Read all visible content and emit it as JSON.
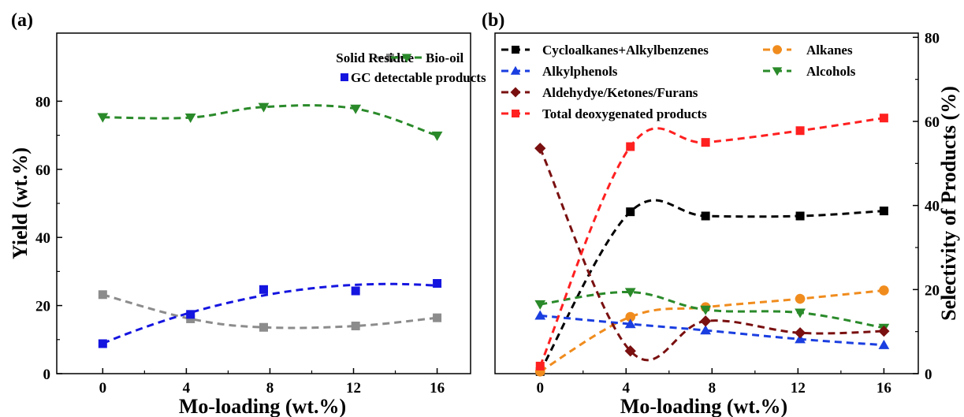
{
  "chart_data": [
    {
      "panel": "(a)",
      "type": "line",
      "xlabel": "Mo-loading (wt.%)",
      "ylabel": "Yield (wt.%)",
      "xlim": [
        -2.2,
        17.6
      ],
      "ylim": [
        0,
        100
      ],
      "xticks": [
        0,
        4,
        8,
        12,
        16
      ],
      "yticks": [
        0,
        20,
        40,
        60,
        80
      ],
      "legend_position": "top-right",
      "series": [
        {
          "name": "Solid Residue",
          "color": "#8c8c8c",
          "marker": "square",
          "x": [
            0,
            4.2,
            7.7,
            12.1,
            16
          ],
          "y": [
            23.2,
            16.1,
            13.6,
            14,
            16.4
          ]
        },
        {
          "name": "Bio-oil",
          "color": "#2a8a2a",
          "marker": "triangle-down",
          "x": [
            0,
            4.2,
            7.7,
            12.1,
            16
          ],
          "y": [
            75.3,
            75.2,
            78.3,
            77.8,
            69.9
          ]
        },
        {
          "name": "GC detectable products",
          "color": "#1515e0",
          "marker": "square",
          "x": [
            0,
            4.2,
            7.7,
            12.1,
            16
          ],
          "y": [
            8.8,
            17.4,
            24.7,
            24.3,
            26.5
          ],
          "trend": true
        }
      ]
    },
    {
      "panel": "(b)",
      "type": "line",
      "xlabel": "Mo-loading (wt.%)",
      "ylabel": "Selectivity of Products (%)",
      "xlim": [
        -2.1,
        17.6
      ],
      "ylim": [
        0,
        81
      ],
      "xticks": [
        0,
        4,
        8,
        12,
        16
      ],
      "yticks": [
        0,
        20,
        40,
        60,
        80
      ],
      "y_axis_side": "right",
      "legend_position": "top-left",
      "series": [
        {
          "name": "Cycloalkanes+Alkylbenzenes",
          "color": "#000000",
          "marker": "square",
          "x": [
            0,
            4.2,
            7.7,
            12.1,
            16
          ],
          "y": [
            0.5,
            38.5,
            37.5,
            37.5,
            38.7
          ]
        },
        {
          "name": "Alkanes",
          "color": "#f08c1e",
          "marker": "circle",
          "x": [
            0,
            4.2,
            7.7,
            12.1,
            16
          ],
          "y": [
            0.5,
            13.5,
            15.8,
            17.8,
            19.8
          ]
        },
        {
          "name": "Alkylphenols",
          "color": "#1a3ee0",
          "marker": "triangle-up",
          "x": [
            0,
            4.2,
            7.7,
            12.1,
            16
          ],
          "y": [
            13.8,
            11.8,
            10.3,
            8.2,
            6.8
          ]
        },
        {
          "name": "Alcohols",
          "color": "#2a8a2a",
          "marker": "triangle-down",
          "x": [
            0,
            4.2,
            7.7,
            12.1,
            16
          ],
          "y": [
            16.5,
            19.4,
            15.2,
            14.5,
            10.9
          ]
        },
        {
          "name": "Aldehydye/Ketones/Furans",
          "color": "#7a1010",
          "marker": "diamond",
          "x": [
            0,
            4.2,
            7.7,
            12.1,
            16
          ],
          "y": [
            53.6,
            5.4,
            12.5,
            9.7,
            10.1
          ]
        },
        {
          "name": "Total deoxygenated products",
          "color": "#ff2020",
          "marker": "square",
          "x": [
            0,
            4.2,
            7.7,
            12.1,
            16
          ],
          "y": [
            1.8,
            54,
            55,
            57.8,
            60.8
          ]
        }
      ]
    }
  ]
}
